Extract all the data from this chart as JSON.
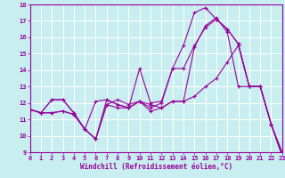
{
  "title": "",
  "xlabel": "Windchill (Refroidissement éolien,°C)",
  "ylabel": "",
  "xlim": [
    0,
    23
  ],
  "ylim": [
    9,
    18
  ],
  "xticks": [
    0,
    1,
    2,
    3,
    4,
    5,
    6,
    7,
    8,
    9,
    10,
    11,
    12,
    13,
    14,
    15,
    16,
    17,
    18,
    19,
    20,
    21,
    22,
    23
  ],
  "yticks": [
    9,
    10,
    11,
    12,
    13,
    14,
    15,
    16,
    17,
    18
  ],
  "background_color": "#c8eef0",
  "grid_color": "#ffffff",
  "line_color": "#990099",
  "lines": [
    {
      "x": [
        0,
        1,
        2,
        3,
        4,
        5,
        6,
        7,
        8,
        9,
        10,
        11,
        12,
        13,
        14,
        15,
        16,
        17,
        18,
        19,
        20,
        21,
        22,
        23
      ],
      "y": [
        11.6,
        11.4,
        11.4,
        11.5,
        11.3,
        10.4,
        9.8,
        12.2,
        11.9,
        11.7,
        12.1,
        11.7,
        12.0,
        14.1,
        15.5,
        17.5,
        17.8,
        17.1,
        16.5,
        15.6,
        13.0,
        13.0,
        10.7,
        8.8
      ]
    },
    {
      "x": [
        0,
        1,
        2,
        3,
        4,
        5,
        6,
        7,
        8,
        9,
        10,
        11,
        12,
        13,
        14,
        15,
        16,
        17,
        18,
        19,
        20,
        21,
        22,
        23
      ],
      "y": [
        11.6,
        11.4,
        12.2,
        12.2,
        11.4,
        10.4,
        9.8,
        11.9,
        12.2,
        11.9,
        12.1,
        11.9,
        11.7,
        12.1,
        12.1,
        15.4,
        16.7,
        17.2,
        16.3,
        13.0,
        13.0,
        13.0,
        10.7,
        8.8
      ]
    },
    {
      "x": [
        0,
        1,
        2,
        3,
        4,
        5,
        6,
        7,
        8,
        9,
        10,
        11,
        12,
        13,
        14,
        15,
        16,
        17,
        18,
        19,
        20,
        21,
        22,
        23
      ],
      "y": [
        11.6,
        11.4,
        12.2,
        12.2,
        11.4,
        10.4,
        12.1,
        12.2,
        11.9,
        11.7,
        14.1,
        12.0,
        12.1,
        14.1,
        14.1,
        15.5,
        16.6,
        17.1,
        16.5,
        15.6,
        13.0,
        13.0,
        10.7,
        8.8
      ]
    },
    {
      "x": [
        0,
        1,
        2,
        3,
        4,
        5,
        6,
        7,
        8,
        9,
        10,
        11,
        12,
        13,
        14,
        15,
        16,
        17,
        18,
        19,
        20,
        21,
        22,
        23
      ],
      "y": [
        11.6,
        11.4,
        11.4,
        11.5,
        11.3,
        10.4,
        9.8,
        11.9,
        11.7,
        11.7,
        12.1,
        11.5,
        11.7,
        12.1,
        12.1,
        12.4,
        13.0,
        13.5,
        14.5,
        15.5,
        13.0,
        13.0,
        10.7,
        9.0
      ]
    }
  ]
}
